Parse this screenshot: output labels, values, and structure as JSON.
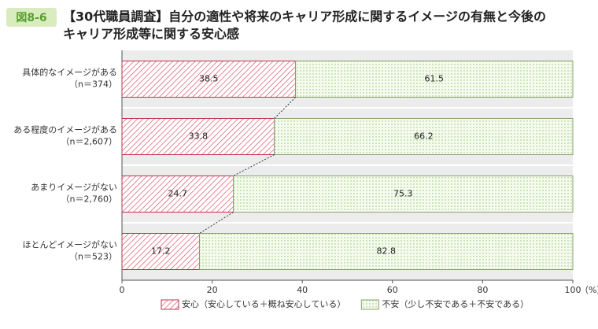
{
  "figure_label": "図8-6",
  "chart_data": {
    "type": "stacked_barh",
    "title": [
      "【30代職員調査】自分の適性や将来のキャリア形成に関するイメージの有無と今後の",
      "キャリア形成等に関する安心感"
    ],
    "categories": [
      "具体的なイメージがある",
      "ある程度のイメージがある",
      "あまりイメージがない",
      "ほとんどイメージがない"
    ],
    "category_counts": [
      "（n＝374）",
      "（n＝2,607）",
      "（n＝2,760）",
      "（n＝523）"
    ],
    "series": [
      {
        "name": "安心（安心している＋概ね安心している）",
        "color": "#d9475f",
        "values": [
          38.5,
          33.8,
          24.7,
          17.2
        ]
      },
      {
        "name": "不安（少し不安である＋不安である）",
        "color": "#8cc46a",
        "values": [
          61.5,
          66.2,
          75.3,
          82.8
        ]
      }
    ],
    "xlim": [
      0,
      100
    ],
    "xticks": [
      0,
      20,
      40,
      60,
      80,
      100
    ],
    "xlabel": "（%）",
    "connectors": true
  }
}
